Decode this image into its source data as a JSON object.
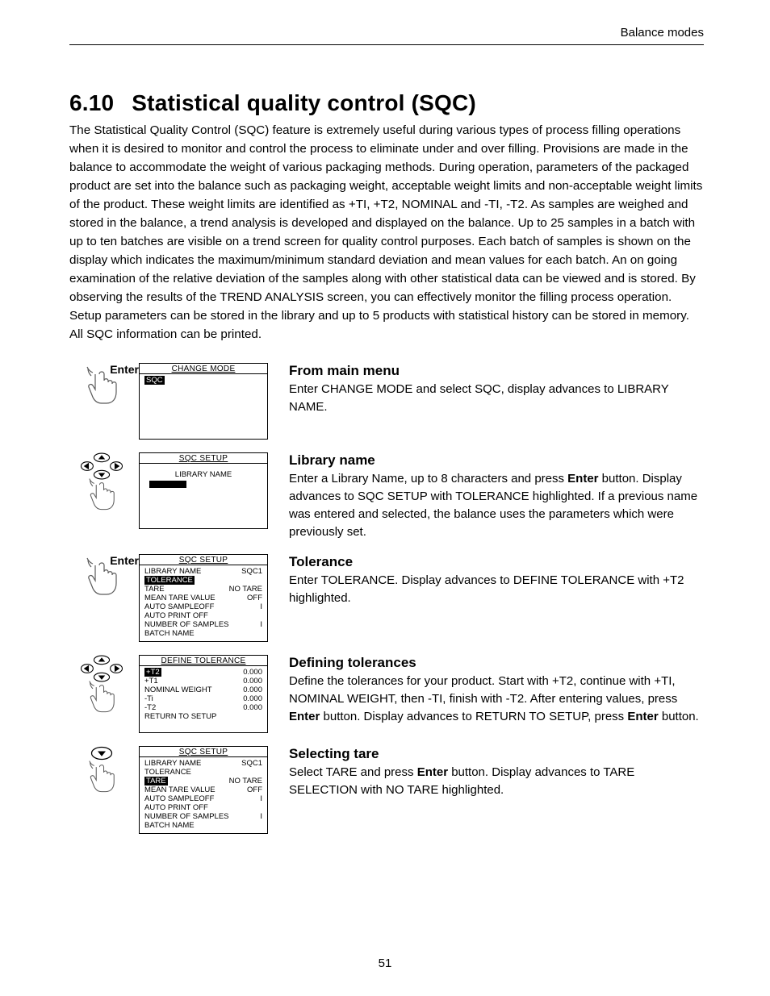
{
  "running_head": "Balance modes",
  "section_number": "6.10",
  "section_title": "Statistical quality control (SQC)",
  "intro_paragraph": "The Statistical Quality Control (SQC) feature is extremely useful during various types of process filling operations when it is desired to monitor and control the process to eliminate under and over filling.  Provisions are made in the balance to accommodate the weight of various packaging methods.  During operation, parameters of the packaged product are set into the balance such as packaging weight, acceptable weight limits and non-acceptable weight limits of the product.  These weight limits are identified as +TI, +T2, NOMINAL and -TI, -T2.  As samples are weighed and stored in the balance, a trend analysis is developed and displayed on the balance.  Up to 25 samples in a batch with up to ten batches are visible on a trend screen for quality control purposes.  Each batch of samples is shown on the display which indicates the maximum/minimum standard deviation and mean values for each batch.  An on going examination of the relative deviation of the samples along with other statistical data can be viewed and is stored.  By observing the results of the TREND ANALYSIS screen, you can effectively monitor the filling process operation.  Setup parameters can be stored in the library and up to 5 products with statistical history can be stored in memory.  All SQC information can be printed.",
  "page_number": "51",
  "colors": {
    "text": "#000000",
    "background": "#ffffff",
    "hand_stroke": "#5a5a5a"
  },
  "steps": [
    {
      "id": "from-main-menu",
      "icon": "hand-enter",
      "enter_label": "Enter",
      "screen": {
        "title": "CHANGE MODE",
        "type": "simple",
        "lines": [
          {
            "left": "SQC",
            "highlight_left": true
          }
        ],
        "tall": true
      },
      "heading": "From main menu",
      "body_html": "Enter CHANGE MODE and select SQC, display advances to LIBRARY NAME."
    },
    {
      "id": "library-name",
      "icon": "dpad-hand",
      "screen": {
        "title": "SQC SETUP",
        "type": "library",
        "center_line": "LIBRARY NAME",
        "show_cursor": true,
        "tall": true
      },
      "heading": "Library name",
      "body_html": "Enter a Library Name, up to 8 characters and press <b>Enter</b> button.  Display advances to SQC SETUP with TOLERANCE highlighted.  If a previous name was entered and selected, the balance uses the parameters which were previously set."
    },
    {
      "id": "tolerance",
      "icon": "hand-enter",
      "enter_label": "Enter",
      "screen": {
        "title": "SQC SETUP",
        "type": "list",
        "lines": [
          {
            "left": "LIBRARY NAME",
            "right": "SQC1"
          },
          {
            "left": "TOLERANCE",
            "highlight_left": true
          },
          {
            "left": "TARE",
            "right": "NO TARE"
          },
          {
            "left": "MEAN TARE VALUE",
            "right": "OFF"
          },
          {
            "left": "AUTO SAMPLEOFF",
            "right": "I"
          },
          {
            "left": "AUTO PRINT   OFF"
          },
          {
            "left": "NUMBER OF SAMPLES",
            "right": "I"
          },
          {
            "left": "BATCH NAME"
          }
        ]
      },
      "heading": "Tolerance",
      "body_html": "Enter TOLERANCE.  Display advances to DEFINE TOLERANCE with +T2 highlighted."
    },
    {
      "id": "defining-tolerances",
      "icon": "dpad-hand",
      "screen": {
        "title": "DEFINE  TOLERANCE",
        "type": "list",
        "lines": [
          {
            "left": "+T2",
            "right": "0.000",
            "highlight_left": true
          },
          {
            "left": "+T1",
            "right": "0.000"
          },
          {
            "left": "NOMINAL WEIGHT",
            "right": "0.000"
          },
          {
            "left": "-Ti",
            "right": "0.000"
          },
          {
            "left": "-T2",
            "right": "0.000"
          },
          {
            "left": "RETURN TO SETUP"
          }
        ],
        "pad_bottom": true
      },
      "heading": "Defining tolerances",
      "body_html": "Define the tolerances for your product.  Start with +T2, continue with +TI, NOMINAL WEIGHT, then -TI, finish with -T2. After entering values, press <b>Enter</b> button.  Display advances to RETURN TO SETUP, press <b>Enter</b> button."
    },
    {
      "id": "selecting-tare",
      "icon": "down-hand",
      "screen": {
        "title": "SQC SETUP",
        "type": "list",
        "lines": [
          {
            "left": "LIBRARY NAME",
            "right": "SQC1"
          },
          {
            "left": "TOLERANCE"
          },
          {
            "left": "TARE",
            "right": "NO TARE",
            "highlight_left": true
          },
          {
            "left": "MEAN TARE VALUE",
            "right": "OFF"
          },
          {
            "left": "AUTO SAMPLEOFF",
            "right": "I"
          },
          {
            "left": "AUTO PRINT   OFF"
          },
          {
            "left": "NUMBER OF SAMPLES",
            "right": "I"
          },
          {
            "left": "BATCH NAME"
          }
        ]
      },
      "heading": "Selecting tare",
      "body_html": "Select TARE and press <b>Enter</b> button.  Display advances to TARE SELECTION with NO TARE highlighted."
    }
  ]
}
